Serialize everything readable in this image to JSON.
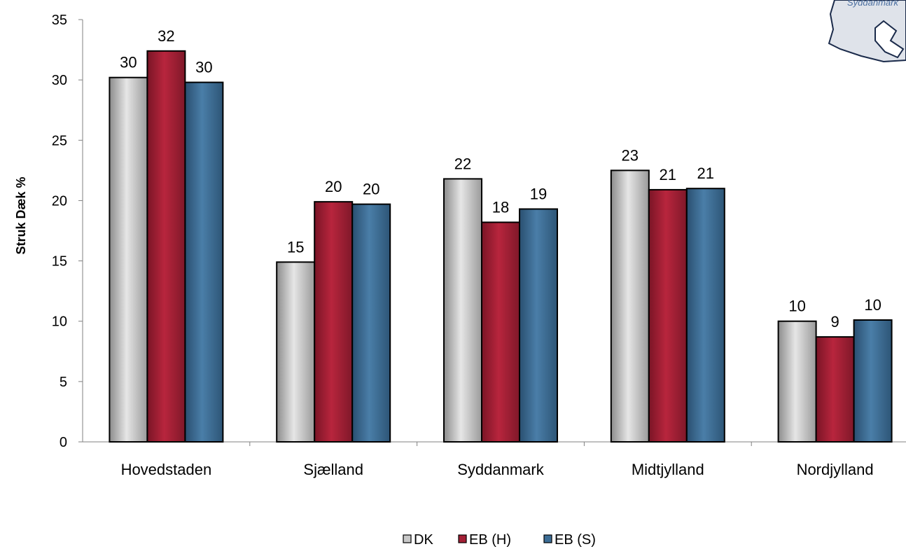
{
  "chart_data": {
    "type": "bar",
    "ylabel": "Struk Dæk %",
    "ylim": [
      0,
      35
    ],
    "yticks": [
      0,
      5,
      10,
      15,
      20,
      25,
      30,
      35
    ],
    "grid": false,
    "legend_position": "bottom",
    "categories": [
      "Hovedstaden",
      "Sjælland",
      "Syddanmark",
      "Midtjylland",
      "Nordjylland"
    ],
    "series": [
      {
        "name": "DK",
        "color": "#c8c8c8",
        "values": [
          30.2,
          14.9,
          21.8,
          22.5,
          10.0
        ],
        "labels": [
          "30",
          "15",
          "22",
          "23",
          "10"
        ]
      },
      {
        "name": "EB (H)",
        "color": "#a31f35",
        "values": [
          32.4,
          19.9,
          18.2,
          20.9,
          8.7
        ],
        "labels": [
          "32",
          "20",
          "18",
          "21",
          "9"
        ]
      },
      {
        "name": "EB (S)",
        "color": "#3c6d96",
        "values": [
          29.8,
          19.7,
          19.3,
          21.0,
          10.1
        ],
        "labels": [
          "30",
          "20",
          "19",
          "21",
          "10"
        ]
      }
    ]
  },
  "logo": {
    "text": "Syddanmark",
    "icon": "region-map-icon"
  }
}
